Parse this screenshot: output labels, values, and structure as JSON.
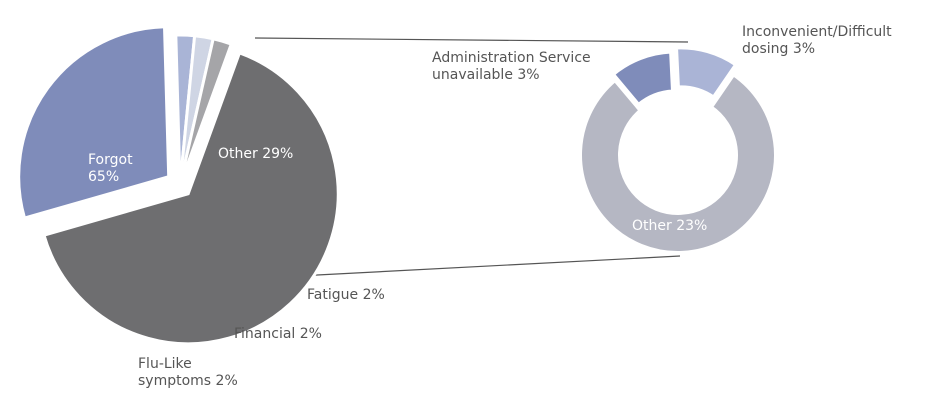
{
  "chart_data": [
    {
      "type": "pie",
      "categories": [
        "Forgot",
        "Other",
        "Fatigue",
        "Financial",
        "Flu-Like symptoms"
      ],
      "values": [
        65,
        29,
        2,
        2,
        2
      ],
      "value_labels": [
        "65%",
        "29%",
        "2%",
        "2%",
        "2%"
      ],
      "colors": [
        "#6e6e70",
        "#7f8cba",
        "#a9b4d6",
        "#cfd5e4",
        "#a5a5a8"
      ]
    },
    {
      "type": "donut",
      "categories": [
        "Administration Service unavailable",
        "Inconvenient/Difficult dosing",
        "Other"
      ],
      "values": [
        3,
        3,
        23
      ],
      "value_labels": [
        "3%",
        "3%",
        "23%"
      ],
      "colors": [
        "#7f8cba",
        "#aab4d6",
        "#b5b7c3"
      ]
    }
  ]
}
